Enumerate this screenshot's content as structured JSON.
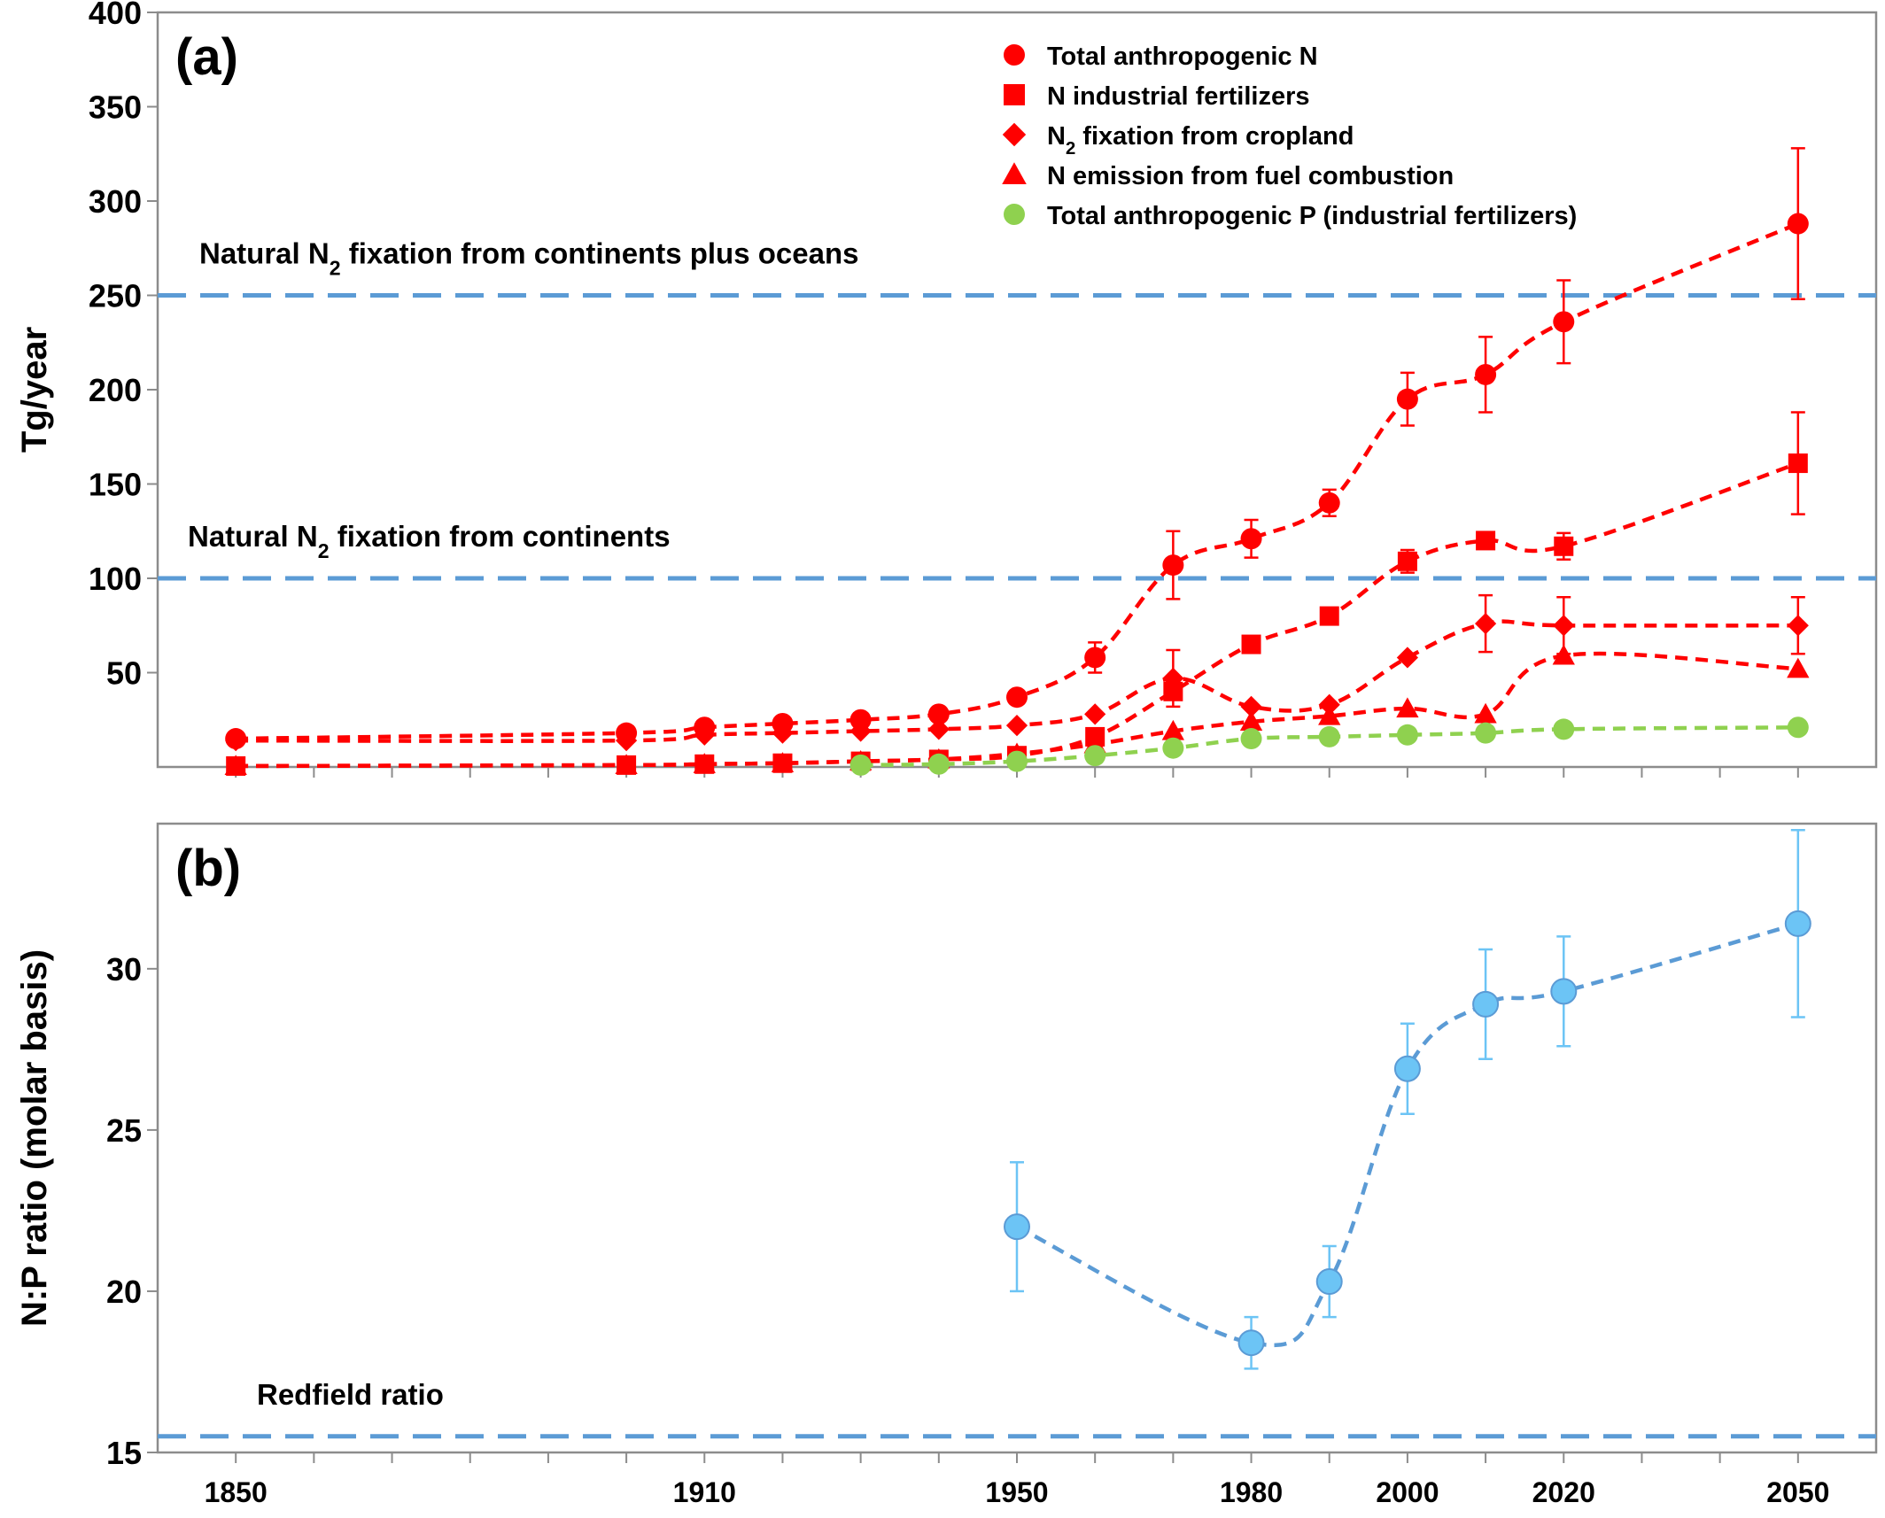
{
  "colors": {
    "nitrogen": "#ff0000",
    "phosphorus": "#8fd14f",
    "ratio_marker": "#6cc4f5",
    "ratio_line": "#5b9bd5",
    "reference_line": "#5b9bd5",
    "axes": "#8c8c8c"
  },
  "chart_data": [
    {
      "panel_label": "(a)",
      "type": "line",
      "ylabel": "Tg/year",
      "ylim": [
        0,
        400
      ],
      "yticks": [
        "50",
        "100",
        "150",
        "200",
        "250",
        "300",
        "350",
        "400"
      ],
      "xlim": [
        1840,
        2060
      ],
      "legend_position": "top-right",
      "reference_lines": [
        {
          "label_pre": "Natural N",
          "label_sub": "2",
          "label_post": " fixation from continents plus oceans",
          "y": 250
        },
        {
          "label_pre": "Natural N",
          "label_sub": "2",
          "label_post": " fixation from continents",
          "y": 100
        }
      ],
      "series": [
        {
          "name": "Total anthropogenic N",
          "name_pre": "Total anthropogenic N",
          "name_sub": "",
          "name_post": "",
          "marker": "circle",
          "color": "#ff0000",
          "x": [
            1850,
            1900,
            1910,
            1920,
            1930,
            1940,
            1950,
            1960,
            1970,
            1980,
            1990,
            2000,
            2010,
            2020,
            2050
          ],
          "y": [
            15,
            18,
            21,
            23,
            25,
            28,
            37,
            58,
            107,
            121,
            140,
            195,
            208,
            236,
            288
          ],
          "err": [
            0,
            0,
            0,
            0,
            0,
            0,
            0,
            8,
            18,
            10,
            7,
            14,
            20,
            22,
            40
          ]
        },
        {
          "name": "N industrial fertilizers",
          "name_pre": "N industrial fertilizers",
          "name_sub": "",
          "name_post": "",
          "marker": "square",
          "color": "#ff0000",
          "x": [
            1850,
            1900,
            1910,
            1920,
            1930,
            1940,
            1950,
            1960,
            1970,
            1980,
            1990,
            2000,
            2010,
            2020,
            2050
          ],
          "y": [
            0.5,
            1,
            1.5,
            2,
            3,
            4,
            6,
            16,
            40,
            65,
            80,
            109,
            120,
            117,
            161
          ],
          "err": [
            0,
            0,
            0,
            0,
            0,
            0,
            0,
            0,
            0,
            0,
            0,
            6,
            0,
            7,
            27
          ]
        },
        {
          "name": "N2 fixation from cropland",
          "name_pre": "N",
          "name_sub": "2",
          "name_post": " fixation from cropland",
          "marker": "diamond",
          "color": "#ff0000",
          "x": [
            1850,
            1900,
            1910,
            1920,
            1930,
            1940,
            1950,
            1960,
            1970,
            1980,
            1990,
            2000,
            2010,
            2020,
            2050
          ],
          "y": [
            14,
            14,
            17,
            18,
            19,
            20,
            22,
            28,
            47,
            32,
            33,
            58,
            76,
            75,
            75
          ],
          "err": [
            0,
            0,
            0,
            0,
            0,
            0,
            0,
            0,
            15,
            0,
            0,
            0,
            15,
            15,
            15
          ]
        },
        {
          "name": "N emission from fuel combustion",
          "name_pre": "N emission from fuel combustion",
          "name_sub": "",
          "name_post": "",
          "marker": "triangle",
          "color": "#ff0000",
          "x": [
            1850,
            1900,
            1910,
            1920,
            1930,
            1940,
            1950,
            1960,
            1970,
            1980,
            1990,
            2000,
            2010,
            2020,
            2050
          ],
          "y": [
            0.5,
            1,
            1.5,
            2,
            3,
            4,
            7,
            12,
            19,
            24,
            27,
            31,
            28,
            59,
            52
          ],
          "err": [
            0,
            0,
            0,
            0,
            0,
            0,
            0,
            0,
            0,
            0,
            0,
            0,
            0,
            0,
            0
          ]
        },
        {
          "name": "Total anthropogenic P (industrial fertilizers)",
          "name_pre": "Total anthropogenic P (industrial fertilizers)",
          "name_sub": "",
          "name_post": "",
          "marker": "circle",
          "color": "#8fd14f",
          "x": [
            1930,
            1940,
            1950,
            1960,
            1970,
            1980,
            1990,
            2000,
            2010,
            2020,
            2050
          ],
          "y": [
            1,
            1.5,
            3,
            6,
            10,
            15,
            16,
            17,
            18,
            20,
            21
          ],
          "err": [
            0,
            0,
            0,
            0,
            0,
            0,
            0,
            0,
            0,
            0,
            0
          ]
        }
      ]
    },
    {
      "panel_label": "(b)",
      "type": "line",
      "ylabel": "N:P ratio (molar basis)",
      "ylim": [
        15,
        34.5
      ],
      "yticks": [
        "15",
        "20",
        "25",
        "30"
      ],
      "xlim": [
        1840,
        2060
      ],
      "xticks": [
        "1850",
        "1910",
        "1950",
        "1980",
        "2000",
        "2020",
        "2050"
      ],
      "reference_lines": [
        {
          "label_pre": "Redfield ratio",
          "label_sub": "",
          "label_post": "",
          "y": 15.5
        }
      ],
      "series": [
        {
          "name": "N:P ratio",
          "marker": "circle",
          "color": "#6cc4f5",
          "x": [
            1950,
            1980,
            1990,
            2000,
            2010,
            2020,
            2050
          ],
          "y": [
            22,
            18.4,
            20.3,
            26.9,
            28.9,
            29.3,
            31.4
          ],
          "err": [
            2,
            0.8,
            1.1,
            1.4,
            1.7,
            1.7,
            2.9
          ]
        }
      ]
    }
  ]
}
